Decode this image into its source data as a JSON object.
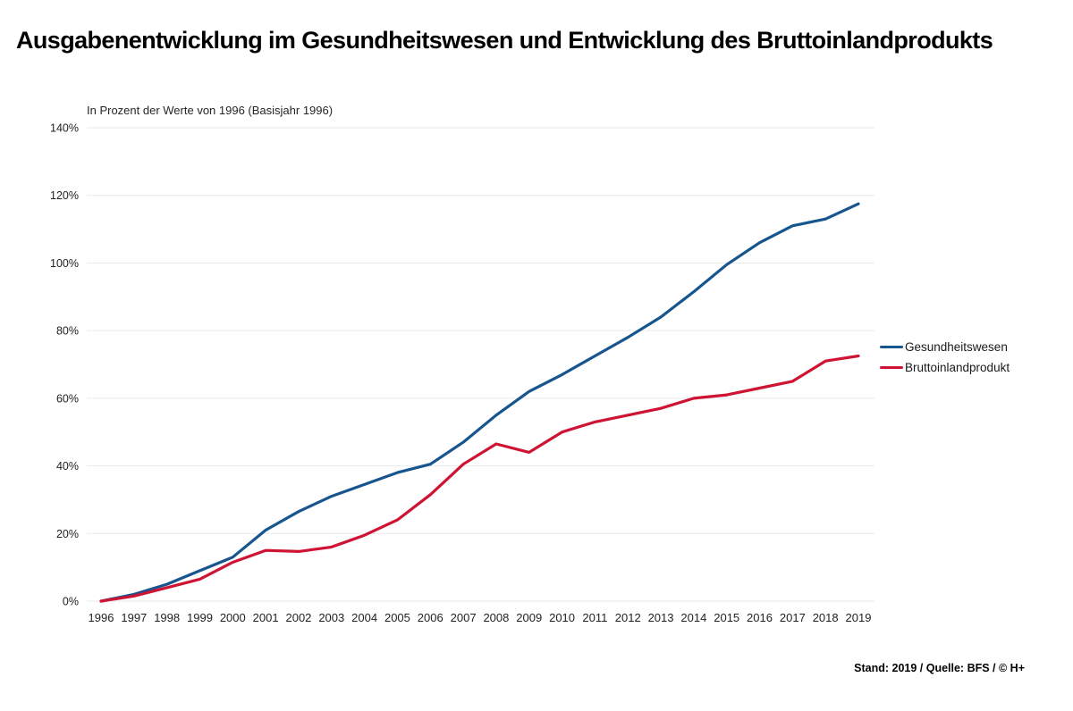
{
  "header": {
    "title": "Ausgabenentwicklung im Gesundheitswesen und Entwicklung des Bruttoinlandprodukts"
  },
  "chart": {
    "subtitle": "In Prozent der Werte von 1996 (Basisjahr 1996)"
  },
  "legend": [
    {
      "label": "Gesundheitswesen",
      "color": "#17558e"
    },
    {
      "label": "Bruttoinlandprodukt",
      "color": "#cf1332"
    }
  ],
  "footer": {
    "text": "Stand: 2019 / Quelle: BFS / © H+"
  },
  "colors": {
    "gridline": "#eaeaea",
    "tick_text": "#222222",
    "background": "#ffffff"
  },
  "chart_data": {
    "type": "line",
    "title": "Ausgabenentwicklung im Gesundheitswesen und Entwicklung des Bruttoinlandprodukts",
    "subtitle": "In Prozent der Werte von 1996 (Basisjahr 1996)",
    "x": [
      1996,
      1997,
      1998,
      1999,
      2000,
      2001,
      2002,
      2003,
      2004,
      2005,
      2006,
      2007,
      2008,
      2009,
      2010,
      2011,
      2012,
      2013,
      2014,
      2015,
      2016,
      2017,
      2018,
      2019
    ],
    "series": [
      {
        "name": "Gesundheitswesen",
        "color": "#17558e",
        "values": [
          0,
          2,
          5,
          9,
          13,
          21,
          26.5,
          31,
          34.5,
          38,
          40.5,
          47,
          55,
          62,
          67,
          72.5,
          78,
          84,
          91.5,
          99.5,
          106,
          111,
          113,
          117.5
        ]
      },
      {
        "name": "Bruttoinlandprodukt",
        "color": "#cf1332",
        "values": [
          0,
          1.5,
          4,
          6.5,
          11.5,
          15,
          14.7,
          16,
          19.5,
          24,
          31.5,
          40.5,
          46.5,
          44,
          50,
          53,
          55,
          57,
          60,
          61,
          63,
          65,
          71,
          72.5
        ]
      }
    ],
    "xlabel": "",
    "ylabel": "",
    "ylim": [
      0,
      140
    ],
    "yticks": [
      0,
      20,
      40,
      60,
      80,
      100,
      120,
      140
    ],
    "ytick_suffix": "%",
    "grid": true,
    "legend_position": "right"
  }
}
